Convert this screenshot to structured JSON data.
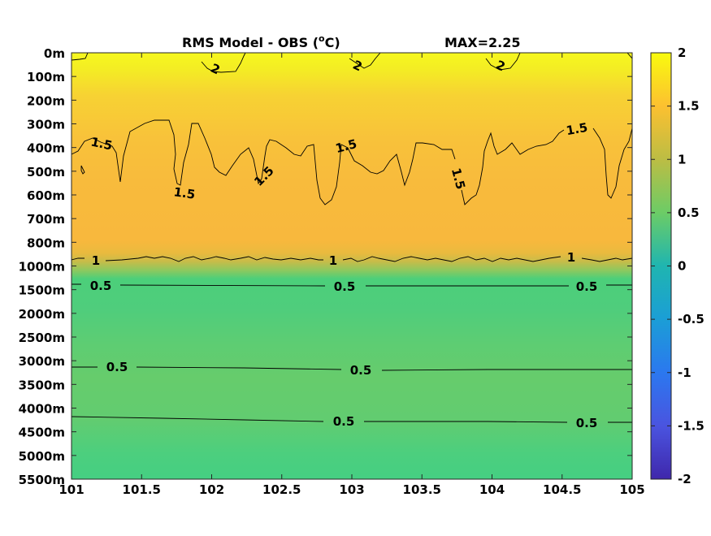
{
  "chart_data": {
    "type": "heatmap",
    "title_left": "RMS Model - OBS (",
    "title_sup": "o",
    "title_right": "C)",
    "title_max": "MAX=2.25",
    "xlabel": "",
    "ylabel": "",
    "x_ticks": [
      "101",
      "101.5",
      "102",
      "102.5",
      "103",
      "103.5",
      "104",
      "104.5",
      "105"
    ],
    "x_range": [
      101,
      105
    ],
    "y_ticks": [
      "0m",
      "100m",
      "200m",
      "300m",
      "400m",
      "500m",
      "600m",
      "700m",
      "800m",
      "1000m",
      "1500m",
      "2000m",
      "2500m",
      "3000m",
      "3500m",
      "4000m",
      "4500m",
      "5000m",
      "5500m"
    ],
    "y_scale": "stretched depth levels (equal spacing per tick label)",
    "colorbar": {
      "ticks": [
        "2",
        "1.5",
        "1",
        "0.5",
        "0",
        "-0.5",
        "-1",
        "-1.5",
        "-2"
      ],
      "range": [
        -2,
        2
      ],
      "colormap": "parula"
    },
    "field_levels": {
      "depth_labels": [
        "0m",
        "100m",
        "200m",
        "300m",
        "400m",
        "500m",
        "600m",
        "700m",
        "800m",
        "1000m",
        "1500m",
        "2000m",
        "2500m",
        "3000m",
        "3500m",
        "4000m",
        "4500m",
        "5000m",
        "5500m"
      ],
      "rms_values": [
        2.0,
        1.9,
        1.75,
        1.6,
        1.5,
        1.45,
        1.4,
        1.35,
        1.3,
        0.9,
        0.55,
        0.55,
        0.6,
        0.65,
        0.65,
        0.65,
        0.6,
        0.55,
        0.5
      ]
    },
    "contours": [
      {
        "level": "2",
        "labels": [
          "2",
          "2",
          "2"
        ]
      },
      {
        "level": "1.5",
        "labels": [
          "1.5",
          "1.5",
          "1.5",
          "1.5",
          "1.5",
          "1.5",
          "1.5"
        ]
      },
      {
        "level": "1",
        "labels": [
          "1",
          "1",
          "1"
        ]
      },
      {
        "level": "0.5",
        "labels": [
          "0.5",
          "0.5",
          "0.5",
          "0.5",
          "0.5",
          "0.5",
          "0.5",
          "0.5",
          "0.5"
        ]
      }
    ]
  }
}
